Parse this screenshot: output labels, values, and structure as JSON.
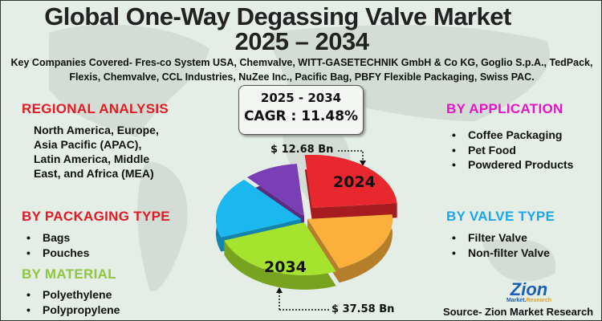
{
  "title": {
    "line1": "Global One-Way Degassing Valve Market",
    "line2": "2025 – 2034"
  },
  "companies": "Key Companies Covered- Fres-co System USA, Chemvalve, WITT-GASETECHNIK GmbH & Co KG, Goglio S.p.A., TedPack, Flexis, Chemvalve, CCL Industries, NuZee Inc., Pacific Bag, PBFY Flexible Packaging, Swiss PAC.",
  "regional": {
    "heading": "REGIONAL ANALYSIS",
    "text": "North America, Europe, Asia Pacific (APAC), Latin America, Middle East, and Africa (MEA)"
  },
  "packaging": {
    "heading": "BY PACKAGING TYPE",
    "items": [
      "Bags",
      "Pouches"
    ]
  },
  "material": {
    "heading": "BY MATERIAL",
    "items": [
      "Polyethylene",
      "Polypropylene"
    ]
  },
  "application": {
    "heading": "BY APPLICATION",
    "items": [
      "Coffee Packaging",
      "Pet Food",
      "Powdered Products"
    ]
  },
  "valve": {
    "heading": "BY VALVE TYPE",
    "items": [
      "Filter Valve",
      "Non-filter Valve"
    ]
  },
  "cagr": {
    "period": "2025 - 2034",
    "label": "CAGR : 11.48%"
  },
  "pie": {
    "value_2024": "$ 12.68 Bn",
    "value_2034": "$ 37.58 Bn",
    "label_2024": "2024",
    "label_2034": "2034",
    "colors": [
      "#e8282e",
      "#fbb03b",
      "#a6e32f",
      "#1bb8f0",
      "#7b3fb5"
    ]
  },
  "logo": {
    "brand": "Zion",
    "sub1": "Market.",
    "sub2": "Research"
  },
  "source": "Source- Zion Market Research"
}
